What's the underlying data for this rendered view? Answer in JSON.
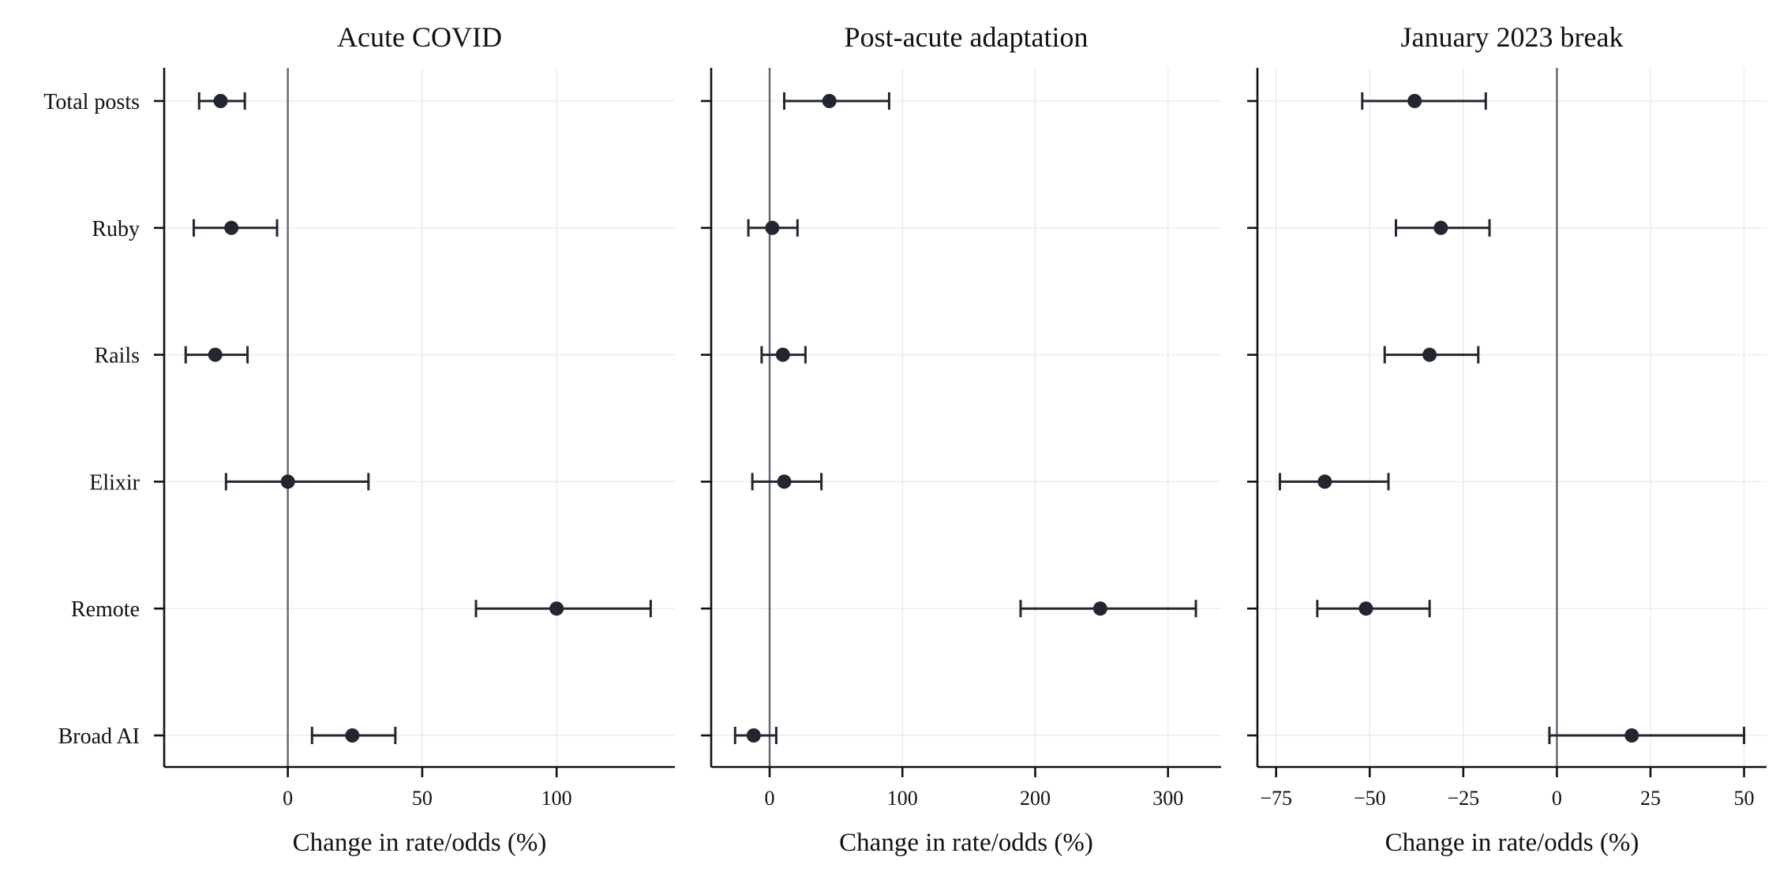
{
  "chart_data": [
    {
      "type": "scatter",
      "title": "Acute COVID",
      "xlabel": "Change in rate/odds (%)",
      "ylabel": "",
      "xlim": [
        -46,
        144
      ],
      "xticks": [
        0,
        50,
        100
      ],
      "xtick_labels": [
        "0",
        "50",
        "100"
      ],
      "zero_line": 0,
      "grid": true,
      "show_category_labels": true,
      "categories": [
        "Total posts",
        "Ruby",
        "Rails",
        "Elixir",
        "Remote",
        "Broad AI"
      ],
      "series": [
        {
          "estimate": [
            -25,
            -21,
            -27,
            0,
            100,
            24
          ],
          "ci_low": [
            -33,
            -35,
            -38,
            -23,
            70,
            9
          ],
          "ci_high": [
            -16,
            -4,
            -15,
            30,
            135,
            40
          ]
        }
      ]
    },
    {
      "type": "scatter",
      "title": "Post-acute adaptation",
      "xlabel": "Change in rate/odds (%)",
      "ylabel": "",
      "xlim": [
        -44,
        340
      ],
      "xticks": [
        0,
        100,
        200,
        300
      ],
      "xtick_labels": [
        "0",
        "100",
        "200",
        "300"
      ],
      "zero_line": 0,
      "grid": true,
      "show_category_labels": false,
      "categories": [
        "Total posts",
        "Ruby",
        "Rails",
        "Elixir",
        "Remote",
        "Broad AI"
      ],
      "series": [
        {
          "estimate": [
            45,
            2,
            10,
            11,
            249,
            -12
          ],
          "ci_low": [
            11,
            -16,
            -6,
            -13,
            189,
            -26
          ],
          "ci_high": [
            90,
            21,
            27,
            39,
            321,
            5
          ]
        }
      ]
    },
    {
      "type": "scatter",
      "title": "January 2023 break",
      "xlabel": "Change in rate/odds (%)",
      "ylabel": "",
      "xlim": [
        -80,
        56
      ],
      "xticks": [
        -75,
        -50,
        -25,
        0,
        25,
        50
      ],
      "xtick_labels": [
        "−75",
        "−50",
        "−25",
        "0",
        "25",
        "50"
      ],
      "zero_line": 0,
      "grid": true,
      "show_category_labels": false,
      "categories": [
        "Total posts",
        "Ruby",
        "Rails",
        "Elixir",
        "Remote",
        "Broad AI"
      ],
      "series": [
        {
          "estimate": [
            -38,
            -31,
            -34,
            -62,
            -51,
            20
          ],
          "ci_low": [
            -52,
            -43,
            -46,
            -74,
            -64,
            -2
          ],
          "ci_high": [
            -19,
            -18,
            -21,
            -45,
            -34,
            50
          ]
        }
      ]
    }
  ]
}
